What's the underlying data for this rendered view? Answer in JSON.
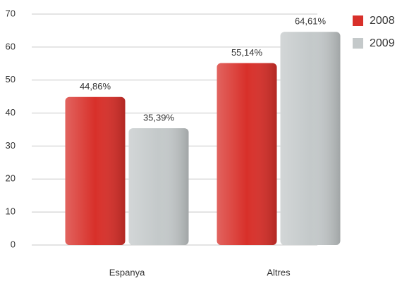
{
  "chart_data": {
    "type": "bar",
    "categories": [
      "Espanya",
      "Altres"
    ],
    "series": [
      {
        "name": "2008",
        "color": "#d8302a",
        "values": [
          44.86,
          55.14
        ],
        "value_labels": [
          "44,86%",
          "55,14%"
        ]
      },
      {
        "name": "2009",
        "color": "#c4c9ca",
        "values": [
          35.39,
          64.61
        ],
        "value_labels": [
          "35,39%",
          "64,61%"
        ]
      }
    ],
    "ylim": [
      0,
      70
    ],
    "yticks": [
      0,
      10,
      20,
      30,
      40,
      50,
      60,
      70
    ],
    "grid": true,
    "legend": "top-right"
  }
}
